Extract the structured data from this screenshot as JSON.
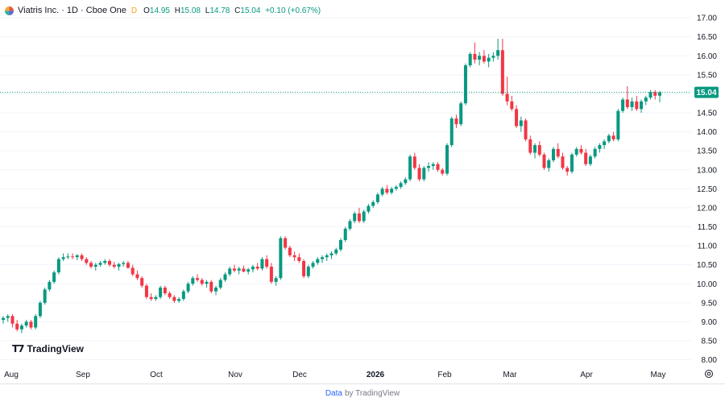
{
  "header": {
    "title": "Viatris Inc. · 1D · Cboe One",
    "interval_dot": "D",
    "o_label": "O",
    "o_value": "14.95",
    "h_label": "H",
    "h_value": "15.08",
    "l_label": "L",
    "l_value": "14.78",
    "c_label": "C",
    "c_value": "15.04",
    "change": "+0.10 (+0.67%)"
  },
  "branding": {
    "logo_text": "TradingView"
  },
  "footer": {
    "link_text": "Data",
    "rest_text": "by TradingView"
  },
  "colors": {
    "up": "#089981",
    "down": "#f23645",
    "price_line": "#089981",
    "grid": "#f0f3fa",
    "axis_text": "#131722"
  },
  "icons": {
    "settings": "gear-icon",
    "symbol_logo": "viatris-logo-icon"
  },
  "chart_data": {
    "type": "candlestick",
    "title": "Viatris Inc. · 1D · Cboe One",
    "ylim": [
      7.8,
      17.3
    ],
    "y_ticks": [
      "17.00",
      "16.50",
      "16.00",
      "15.50",
      "15.00",
      "14.50",
      "14.00",
      "13.50",
      "13.00",
      "12.50",
      "12.00",
      "11.50",
      "11.00",
      "10.50",
      "10.00",
      "9.50",
      "9.00",
      "8.50",
      "8.00"
    ],
    "x_tick_labels": [
      "Aug",
      "Sep",
      "Oct",
      "Nov",
      "Dec",
      "2026",
      "Feb",
      "Mar",
      "Apr",
      "May"
    ],
    "last_price": "15.04",
    "candles": [
      [
        9.05,
        9.15,
        8.95,
        9.1
      ],
      [
        9.1,
        9.2,
        9.0,
        9.15
      ],
      [
        9.15,
        9.2,
        8.85,
        8.95
      ],
      [
        8.95,
        9.05,
        8.75,
        8.8
      ],
      [
        8.8,
        8.95,
        8.7,
        8.9
      ],
      [
        8.9,
        9.05,
        8.85,
        9.0
      ],
      [
        9.0,
        9.05,
        8.8,
        8.85
      ],
      [
        8.85,
        9.2,
        8.8,
        9.15
      ],
      [
        9.15,
        9.55,
        9.1,
        9.5
      ],
      [
        9.5,
        9.9,
        9.45,
        9.85
      ],
      [
        9.85,
        10.1,
        9.8,
        10.05
      ],
      [
        10.05,
        10.35,
        10.0,
        10.3
      ],
      [
        10.3,
        10.7,
        10.25,
        10.65
      ],
      [
        10.65,
        10.8,
        10.6,
        10.7
      ],
      [
        10.7,
        10.8,
        10.65,
        10.72
      ],
      [
        10.72,
        10.8,
        10.65,
        10.7
      ],
      [
        10.7,
        10.78,
        10.62,
        10.75
      ],
      [
        10.75,
        10.8,
        10.6,
        10.65
      ],
      [
        10.65,
        10.7,
        10.5,
        10.55
      ],
      [
        10.55,
        10.6,
        10.4,
        10.45
      ],
      [
        10.45,
        10.55,
        10.35,
        10.5
      ],
      [
        10.5,
        10.6,
        10.45,
        10.55
      ],
      [
        10.55,
        10.65,
        10.5,
        10.6
      ],
      [
        10.6,
        10.65,
        10.45,
        10.5
      ],
      [
        10.5,
        10.58,
        10.4,
        10.45
      ],
      [
        10.45,
        10.55,
        10.35,
        10.52
      ],
      [
        10.52,
        10.6,
        10.45,
        10.55
      ],
      [
        10.55,
        10.6,
        10.4,
        10.42
      ],
      [
        10.42,
        10.5,
        10.2,
        10.25
      ],
      [
        10.25,
        10.35,
        10.1,
        10.15
      ],
      [
        10.15,
        10.2,
        9.9,
        9.95
      ],
      [
        9.95,
        10.0,
        9.6,
        9.65
      ],
      [
        9.65,
        9.75,
        9.55,
        9.6
      ],
      [
        9.6,
        9.7,
        9.55,
        9.65
      ],
      [
        9.65,
        9.95,
        9.6,
        9.9
      ],
      [
        9.9,
        9.95,
        9.7,
        9.75
      ],
      [
        9.75,
        9.8,
        9.6,
        9.65
      ],
      [
        9.65,
        9.7,
        9.5,
        9.55
      ],
      [
        9.55,
        9.65,
        9.5,
        9.6
      ],
      [
        9.6,
        9.85,
        9.55,
        9.8
      ],
      [
        9.8,
        10.05,
        9.75,
        10.0
      ],
      [
        10.0,
        10.2,
        9.95,
        10.15
      ],
      [
        10.15,
        10.25,
        10.05,
        10.1
      ],
      [
        10.1,
        10.15,
        9.95,
        10.0
      ],
      [
        10.0,
        10.1,
        9.9,
        10.05
      ],
      [
        10.05,
        10.1,
        9.75,
        9.8
      ],
      [
        9.8,
        9.95,
        9.7,
        9.9
      ],
      [
        9.9,
        10.15,
        9.85,
        10.1
      ],
      [
        10.1,
        10.3,
        10.05,
        10.25
      ],
      [
        10.25,
        10.45,
        10.2,
        10.4
      ],
      [
        10.4,
        10.5,
        10.3,
        10.35
      ],
      [
        10.35,
        10.45,
        10.25,
        10.4
      ],
      [
        10.4,
        10.48,
        10.3,
        10.32
      ],
      [
        10.32,
        10.42,
        10.25,
        10.38
      ],
      [
        10.38,
        10.5,
        10.3,
        10.45
      ],
      [
        10.45,
        10.55,
        10.35,
        10.4
      ],
      [
        10.4,
        10.7,
        10.35,
        10.65
      ],
      [
        10.65,
        10.75,
        10.4,
        10.45
      ],
      [
        10.45,
        10.55,
        10.0,
        10.05
      ],
      [
        10.05,
        10.2,
        9.95,
        10.15
      ],
      [
        10.15,
        11.25,
        10.1,
        11.2
      ],
      [
        11.2,
        11.25,
        10.9,
        10.95
      ],
      [
        10.95,
        11.0,
        10.7,
        10.75
      ],
      [
        10.75,
        10.85,
        10.6,
        10.7
      ],
      [
        10.7,
        10.8,
        10.55,
        10.6
      ],
      [
        10.6,
        10.65,
        10.15,
        10.2
      ],
      [
        10.2,
        10.5,
        10.15,
        10.45
      ],
      [
        10.45,
        10.6,
        10.4,
        10.55
      ],
      [
        10.55,
        10.7,
        10.5,
        10.65
      ],
      [
        10.65,
        10.75,
        10.55,
        10.7
      ],
      [
        10.7,
        10.8,
        10.6,
        10.75
      ],
      [
        10.75,
        10.85,
        10.65,
        10.8
      ],
      [
        10.8,
        10.95,
        10.75,
        10.9
      ],
      [
        10.9,
        11.2,
        10.85,
        11.15
      ],
      [
        11.15,
        11.5,
        11.1,
        11.45
      ],
      [
        11.45,
        11.7,
        11.4,
        11.65
      ],
      [
        11.65,
        11.9,
        11.6,
        11.85
      ],
      [
        11.85,
        12.0,
        11.6,
        11.65
      ],
      [
        11.65,
        11.95,
        11.6,
        11.9
      ],
      [
        11.9,
        12.1,
        11.85,
        12.05
      ],
      [
        12.05,
        12.2,
        12.0,
        12.15
      ],
      [
        12.15,
        12.4,
        12.1,
        12.35
      ],
      [
        12.35,
        12.55,
        12.3,
        12.5
      ],
      [
        12.5,
        12.6,
        12.35,
        12.4
      ],
      [
        12.4,
        12.55,
        12.35,
        12.5
      ],
      [
        12.5,
        12.6,
        12.45,
        12.55
      ],
      [
        12.55,
        12.7,
        12.5,
        12.65
      ],
      [
        12.65,
        12.8,
        12.6,
        12.75
      ],
      [
        12.75,
        13.4,
        12.7,
        13.35
      ],
      [
        13.35,
        13.45,
        13.0,
        13.05
      ],
      [
        13.05,
        13.15,
        12.7,
        12.75
      ],
      [
        12.75,
        13.1,
        12.7,
        13.05
      ],
      [
        13.05,
        13.2,
        12.95,
        13.1
      ],
      [
        13.1,
        13.2,
        13.0,
        13.15
      ],
      [
        13.15,
        13.2,
        12.95,
        13.0
      ],
      [
        13.0,
        13.05,
        12.85,
        12.9
      ],
      [
        12.9,
        13.7,
        12.85,
        13.65
      ],
      [
        13.65,
        14.4,
        13.6,
        14.35
      ],
      [
        14.35,
        14.45,
        14.1,
        14.2
      ],
      [
        14.2,
        14.8,
        14.15,
        14.75
      ],
      [
        14.75,
        15.8,
        14.7,
        15.75
      ],
      [
        15.75,
        16.1,
        15.7,
        16.05
      ],
      [
        16.05,
        16.35,
        15.8,
        15.9
      ],
      [
        15.9,
        16.1,
        15.75,
        16.0
      ],
      [
        16.0,
        16.15,
        15.8,
        15.85
      ],
      [
        15.85,
        16.05,
        15.7,
        15.95
      ],
      [
        15.95,
        16.1,
        15.85,
        16.0
      ],
      [
        16.0,
        16.45,
        15.9,
        16.15
      ],
      [
        16.15,
        16.45,
        14.95,
        15.0
      ],
      [
        15.0,
        15.45,
        14.7,
        14.8
      ],
      [
        14.8,
        14.95,
        14.55,
        14.6
      ],
      [
        14.6,
        14.7,
        14.1,
        14.15
      ],
      [
        14.15,
        14.4,
        14.0,
        14.3
      ],
      [
        14.3,
        14.35,
        13.75,
        13.8
      ],
      [
        13.8,
        13.9,
        13.4,
        13.45
      ],
      [
        13.45,
        13.7,
        13.3,
        13.65
      ],
      [
        13.65,
        13.75,
        13.35,
        13.4
      ],
      [
        13.4,
        13.45,
        13.0,
        13.05
      ],
      [
        13.05,
        13.3,
        12.95,
        13.25
      ],
      [
        13.25,
        13.6,
        13.2,
        13.55
      ],
      [
        13.55,
        13.7,
        13.3,
        13.35
      ],
      [
        13.35,
        13.45,
        13.0,
        13.05
      ],
      [
        13.05,
        13.1,
        12.85,
        12.95
      ],
      [
        12.95,
        13.45,
        12.9,
        13.4
      ],
      [
        13.4,
        13.6,
        13.35,
        13.55
      ],
      [
        13.55,
        13.65,
        13.4,
        13.45
      ],
      [
        13.45,
        13.55,
        13.1,
        13.15
      ],
      [
        13.15,
        13.4,
        13.1,
        13.35
      ],
      [
        13.35,
        13.6,
        13.3,
        13.55
      ],
      [
        13.55,
        13.7,
        13.45,
        13.65
      ],
      [
        13.65,
        13.8,
        13.55,
        13.75
      ],
      [
        13.75,
        13.95,
        13.7,
        13.9
      ],
      [
        13.9,
        14.0,
        13.75,
        13.8
      ],
      [
        13.8,
        14.6,
        13.75,
        14.55
      ],
      [
        14.55,
        14.9,
        14.5,
        14.85
      ],
      [
        14.85,
        15.2,
        14.6,
        14.65
      ],
      [
        14.65,
        14.9,
        14.55,
        14.8
      ],
      [
        14.8,
        14.95,
        14.55,
        14.6
      ],
      [
        14.6,
        14.85,
        14.5,
        14.8
      ],
      [
        14.8,
        14.95,
        14.7,
        14.9
      ],
      [
        14.9,
        15.1,
        14.85,
        15.05
      ],
      [
        15.05,
        15.1,
        14.85,
        14.95
      ],
      [
        14.95,
        15.08,
        14.78,
        15.04
      ]
    ]
  }
}
